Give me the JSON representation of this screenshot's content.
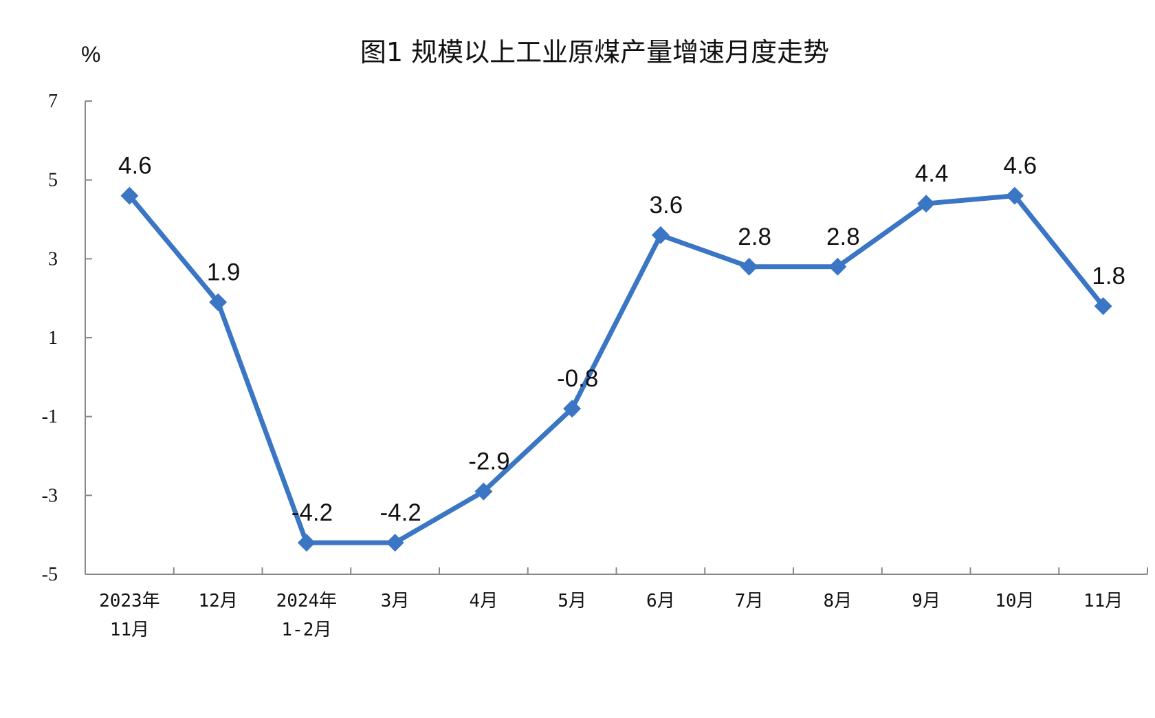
{
  "chart_data": {
    "type": "line",
    "title": "图1  规模以上工业原煤产量增速月度走势",
    "ylabel": "%",
    "xlabel": "",
    "ylim": [
      -5,
      7
    ],
    "yticks": [
      7,
      5,
      3,
      1,
      -1,
      -3,
      -5
    ],
    "grid": false,
    "categories": [
      [
        "2023年",
        "11月"
      ],
      [
        "12月"
      ],
      [
        "2024年",
        "1-2月"
      ],
      [
        "3月"
      ],
      [
        "4月"
      ],
      [
        "5月"
      ],
      [
        "6月"
      ],
      [
        "7月"
      ],
      [
        "8月"
      ],
      [
        "9月"
      ],
      [
        "10月"
      ],
      [
        "11月"
      ]
    ],
    "series": [
      {
        "values": [
          4.6,
          1.9,
          -4.2,
          -4.2,
          -2.9,
          -0.8,
          3.6,
          2.8,
          2.8,
          4.4,
          4.6,
          1.8
        ]
      }
    ],
    "data_labels": [
      "4.6",
      "1.9",
      "-4.2",
      "-4.2",
      "-2.9",
      "-0.8",
      "3.6",
      "2.8",
      "2.8",
      "4.4",
      "4.6",
      "1.8"
    ],
    "colors": {
      "line": "#3a76c4",
      "axis": "#888888"
    }
  }
}
